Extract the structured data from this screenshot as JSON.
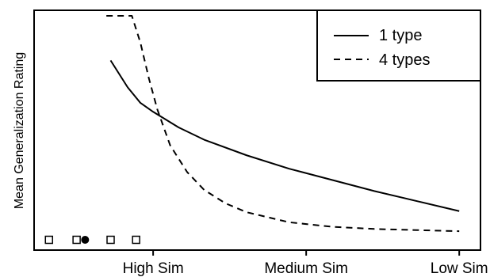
{
  "chart_data": {
    "type": "line",
    "ylabel": "Mean Generalization Rating",
    "xlabel": "",
    "x_ticks": [
      {
        "label": "High Sim",
        "x": 0.28
      },
      {
        "label": "Medium Sim",
        "x": 0.64
      },
      {
        "label": "Low Sim",
        "x": 1.0
      }
    ],
    "xlim": [
      0.0,
      1.05
    ],
    "ylim": [
      0.0,
      1.0
    ],
    "grid": false,
    "legend_position": "top-right",
    "series": [
      {
        "name": "1 type",
        "line_style": "solid",
        "color": "#000000",
        "x": [
          0.18,
          0.22,
          0.25,
          0.28,
          0.34,
          0.4,
          0.5,
          0.6,
          0.7,
          0.8,
          0.9,
          1.0
        ],
        "y": [
          0.8,
          0.68,
          0.61,
          0.57,
          0.5,
          0.445,
          0.375,
          0.315,
          0.265,
          0.215,
          0.17,
          0.125
        ]
      },
      {
        "name": "4 types",
        "line_style": "dashed",
        "color": "#000000",
        "x": [
          0.17,
          0.23,
          0.25,
          0.27,
          0.29,
          0.32,
          0.36,
          0.4,
          0.45,
          0.5,
          0.6,
          0.7,
          0.8,
          0.9,
          1.0
        ],
        "y": [
          1.0,
          1.0,
          0.88,
          0.72,
          0.58,
          0.42,
          0.3,
          0.22,
          0.16,
          0.12,
          0.075,
          0.055,
          0.045,
          0.04,
          0.035
        ]
      }
    ],
    "markers": [
      {
        "shape": "square-open",
        "x": 0.035
      },
      {
        "shape": "square-open",
        "x": 0.1
      },
      {
        "shape": "circle-filled",
        "x": 0.12
      },
      {
        "shape": "square-open",
        "x": 0.18
      },
      {
        "shape": "square-open",
        "x": 0.24
      }
    ]
  }
}
